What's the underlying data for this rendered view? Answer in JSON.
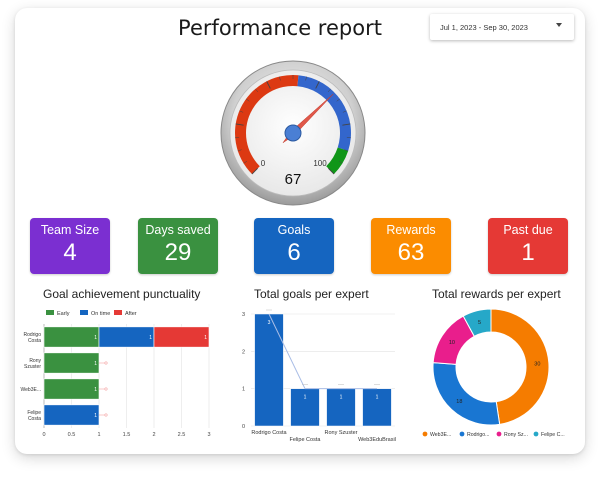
{
  "header": {
    "title": "Performance report",
    "date_range": "Jul 1, 2023 - Sep 30, 2023"
  },
  "gauge": {
    "value": 67,
    "min_label": "0",
    "max_label": "100",
    "colors": {
      "red": "#dc3912",
      "blue": "#3366cc",
      "green": "#109618",
      "needle": "#e0584a"
    }
  },
  "kpis": [
    {
      "label": "Team Size",
      "value": "4",
      "color": "#7b2fd1"
    },
    {
      "label": "Days saved",
      "value": "29",
      "color": "#3a9140"
    },
    {
      "label": "Goals",
      "value": "6",
      "color": "#1565c0"
    },
    {
      "label": "Rewards",
      "value": "63",
      "color": "#fb8c00"
    },
    {
      "label": "Past due",
      "value": "1",
      "color": "#e53935"
    }
  ],
  "chart_data": [
    {
      "type": "bar",
      "orientation": "horizontal",
      "stacked": true,
      "title": "Goal achievement punctuality",
      "categories": [
        "Rodrigo Costa",
        "Rony Szuster",
        "Web3E...",
        "Felipe Costa"
      ],
      "series": [
        {
          "name": "Early",
          "color": "#3a9140",
          "values": [
            1,
            1,
            1,
            0
          ]
        },
        {
          "name": "On time",
          "color": "#1565c0",
          "values": [
            1,
            0,
            0,
            1
          ]
        },
        {
          "name": "After",
          "color": "#e53935",
          "values": [
            1,
            0,
            0,
            0
          ]
        }
      ],
      "xticks": [
        "0",
        "0.5",
        "1",
        "1.5",
        "2",
        "2.5",
        "3"
      ],
      "xlim": [
        0,
        3
      ],
      "legend": "top",
      "grid": true
    },
    {
      "type": "bar",
      "title": "Total goals per expert",
      "categories": [
        "Rodrigo Costa",
        "Felipe Costa",
        "Rony Szuster",
        "Web3EduBrasil"
      ],
      "values": [
        3,
        1,
        1,
        1
      ],
      "yticks": [
        "0",
        "1",
        "2",
        "3"
      ],
      "ylim": [
        0,
        3
      ],
      "color": "#1565c0",
      "grid": true
    },
    {
      "type": "pie",
      "donut": true,
      "title": "Total rewards per expert",
      "slices": [
        {
          "name": "Web3E...",
          "value": 30,
          "label": "30",
          "color": "#f57c00"
        },
        {
          "name": "Rodrigo...",
          "value": 18,
          "label": "18",
          "color": "#1976d2"
        },
        {
          "name": "Rony Sz...",
          "value": 10,
          "label": "10",
          "color": "#e91e8c"
        },
        {
          "name": "Felipe C...",
          "value": 5,
          "label": "5",
          "color": "#26a8c8"
        }
      ],
      "legend": "bottom"
    }
  ]
}
